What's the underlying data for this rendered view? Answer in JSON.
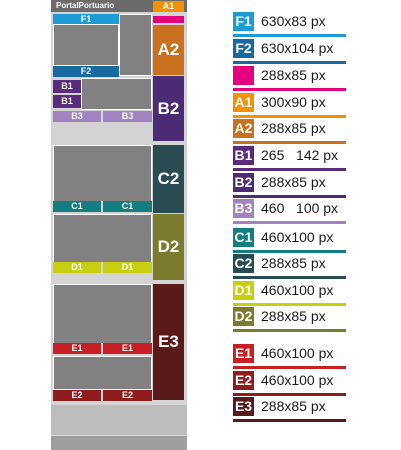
{
  "header": {
    "site_name": "PortalPortuario"
  },
  "slots": {
    "F1": {
      "label": "F1",
      "color": "#1d9bd7"
    },
    "F2": {
      "label": "F2",
      "color": "#1869a2"
    },
    "pink": {
      "label": "",
      "color": "#e5007e"
    },
    "A1": {
      "label": "A1",
      "color": "#f39200"
    },
    "A2": {
      "label": "A2",
      "color": "#c9711f"
    },
    "B1": {
      "label": "B1",
      "color": "#5a2a7d"
    },
    "B2": {
      "label": "B2",
      "color": "#4b2b73"
    },
    "B3": {
      "label": "B3",
      "color": "#a283c1"
    },
    "C1": {
      "label": "C1",
      "color": "#127e82"
    },
    "C2": {
      "label": "C2",
      "color": "#294c52"
    },
    "D1": {
      "label": "D1",
      "color": "#c8cf11"
    },
    "D2": {
      "label": "D2",
      "color": "#7a7b2c"
    },
    "E1": {
      "label": "E1",
      "color": "#c81f26"
    },
    "E2": {
      "label": "E2",
      "color": "#8f1d1d"
    },
    "E3": {
      "label": "E3",
      "color": "#5a1a19"
    }
  },
  "legend": [
    {
      "code": "F1",
      "size": "630x83 px",
      "color": "#1d9bd7"
    },
    {
      "code": "F2",
      "size": "630x104 px",
      "color": "#1869a2"
    },
    {
      "code": "",
      "size": "288x85 px",
      "color": "#e5007e"
    },
    {
      "code": "A1",
      "size": "300x90 px",
      "color": "#f39200"
    },
    {
      "code": "A2",
      "size": "288x85 px",
      "color": "#c9711f"
    },
    {
      "code": "B1",
      "size": "265   142 px",
      "color": "#5a2a7d"
    },
    {
      "code": "B2",
      "size": "288x85 px",
      "color": "#4b2b73"
    },
    {
      "code": "B3",
      "size": "460   100 px",
      "color": "#a283c1"
    },
    {
      "code": "C1",
      "size": "460x100 px",
      "color": "#127e82"
    },
    {
      "code": "C2",
      "size": "288x85 px",
      "color": "#294c52"
    },
    {
      "code": "D1",
      "size": "460x100 px",
      "color": "#c8cf11"
    },
    {
      "code": "D2",
      "size": "288x85 px",
      "color": "#7a7b2c"
    },
    {
      "code": "E1",
      "size": "460x100 px",
      "color": "#c81f26"
    },
    {
      "code": "E2",
      "size": "460x100 px",
      "color": "#8f1d1d"
    },
    {
      "code": "E3",
      "size": "288x85 px",
      "color": "#5a1a19"
    }
  ]
}
